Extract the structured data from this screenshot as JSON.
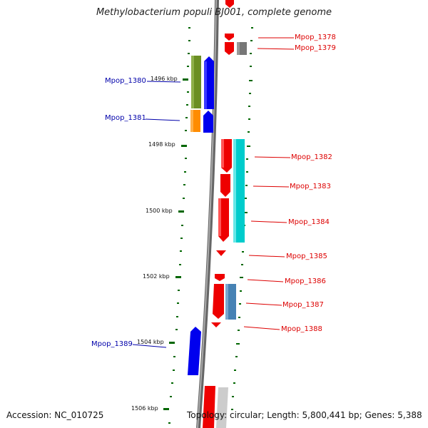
{
  "title": "Methylobacterium populi BJ001, complete genome",
  "footer": {
    "accession": "Accession: NC_010725",
    "topology": "Topology: circular; Length: 5,800,441 bp; Genes: 5,388"
  },
  "colors": {
    "red_gene": "#ee0000",
    "blue_gene": "#0000ee",
    "olive_gene": "#6b8e23",
    "orange_gene": "#ff8c00",
    "cyan_gene": "#00cccc",
    "steel_gene": "#4682b4",
    "gray_gene": "#777777",
    "lightgray_gene": "#cccccc",
    "backbone": "#888888",
    "tick": "#006600"
  },
  "scale_labels": [
    "1496 kbp",
    "1498 kbp",
    "1500 kbp",
    "1502 kbp",
    "1504 kbp",
    "1506 kbp"
  ],
  "gene_labels": [
    {
      "name": "Mpop_1378",
      "color": "red"
    },
    {
      "name": "Mpop_1379",
      "color": "red"
    },
    {
      "name": "Mpop_1380",
      "color": "blue"
    },
    {
      "name": "Mpop_1381",
      "color": "blue"
    },
    {
      "name": "Mpop_1382",
      "color": "red"
    },
    {
      "name": "Mpop_1383",
      "color": "red"
    },
    {
      "name": "Mpop_1384",
      "color": "red"
    },
    {
      "name": "Mpop_1385",
      "color": "red"
    },
    {
      "name": "Mpop_1386",
      "color": "red"
    },
    {
      "name": "Mpop_1387",
      "color": "red"
    },
    {
      "name": "Mpop_1388",
      "color": "red"
    },
    {
      "name": "Mpop_1389",
      "color": "blue"
    }
  ]
}
